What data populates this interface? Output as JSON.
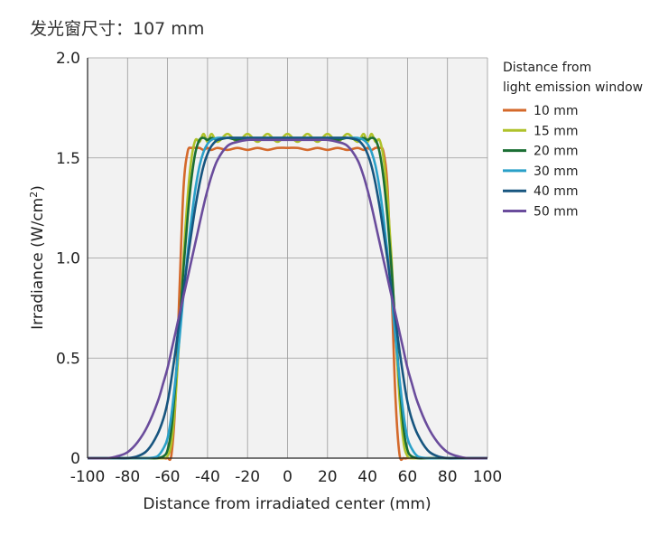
{
  "page_title": "发光窗尺寸：107 mm",
  "chart_data": {
    "type": "line",
    "title": "发光窗尺寸：107 mm",
    "xlabel": "Distance from irradiated center (mm)",
    "ylabel": "Irradiance (W/cm",
    "ylabel_sup": "2",
    "ylabel_tail": ")",
    "xlim": [
      -100,
      100
    ],
    "ylim": [
      0,
      2.0
    ],
    "x_ticks": [
      -100,
      -80,
      -60,
      -40,
      -20,
      0,
      20,
      40,
      60,
      80,
      100
    ],
    "x_tick_labels": [
      "-100",
      "-80",
      "-60",
      "-40",
      "-20",
      "0",
      "20",
      "40",
      "60",
      "80",
      "100"
    ],
    "y_ticks": [
      0,
      0.5,
      1.0,
      1.5,
      2.0
    ],
    "y_tick_labels": [
      "0",
      "0.5",
      "1.0",
      "1.5",
      "2.0"
    ],
    "grid": true,
    "legend_position": "right",
    "legend_title_line1": "Distance from",
    "legend_title_line2": "light emission window",
    "x": [
      -100,
      -90,
      -85,
      -80,
      -75,
      -70,
      -65,
      -62,
      -60,
      -58,
      -56,
      -54,
      -52,
      -50,
      -48,
      -46,
      -44,
      -42,
      -40,
      -38,
      -35,
      -30,
      -25,
      -20,
      -15,
      -10,
      -5,
      0,
      5,
      10,
      15,
      20,
      25,
      30,
      35,
      38,
      40,
      42,
      44,
      46,
      48,
      50,
      52,
      54,
      56,
      58,
      60,
      62,
      65,
      70,
      75,
      80,
      85,
      90,
      100
    ],
    "series": [
      {
        "name": "10 mm",
        "color": "#D4692B",
        "values": [
          0,
          0,
          0,
          0,
          0,
          0,
          0,
          0,
          0,
          0.02,
          0.3,
          0.85,
          1.35,
          1.53,
          1.55,
          1.55,
          1.55,
          1.54,
          1.55,
          1.54,
          1.55,
          1.54,
          1.55,
          1.54,
          1.55,
          1.54,
          1.55,
          1.55,
          1.55,
          1.54,
          1.55,
          1.54,
          1.55,
          1.54,
          1.55,
          1.54,
          1.55,
          1.54,
          1.55,
          1.55,
          1.53,
          1.35,
          0.85,
          0.3,
          0.02,
          0,
          0,
          0,
          0,
          0,
          0,
          0,
          0,
          0,
          0
        ]
      },
      {
        "name": "15 mm",
        "color": "#AFC22B",
        "values": [
          0,
          0,
          0,
          0,
          0,
          0,
          0,
          0,
          0.01,
          0.08,
          0.3,
          0.62,
          1.0,
          1.3,
          1.5,
          1.59,
          1.58,
          1.62,
          1.58,
          1.62,
          1.58,
          1.62,
          1.58,
          1.62,
          1.58,
          1.62,
          1.58,
          1.62,
          1.58,
          1.62,
          1.58,
          1.62,
          1.58,
          1.62,
          1.58,
          1.62,
          1.58,
          1.62,
          1.58,
          1.59,
          1.5,
          1.3,
          1.0,
          0.62,
          0.3,
          0.08,
          0.01,
          0,
          0,
          0,
          0,
          0,
          0,
          0,
          0
        ]
      },
      {
        "name": "20 mm",
        "color": "#1A6E33",
        "values": [
          0,
          0,
          0,
          0,
          0,
          0,
          0,
          0.01,
          0.04,
          0.15,
          0.38,
          0.66,
          0.95,
          1.2,
          1.4,
          1.53,
          1.59,
          1.6,
          1.59,
          1.6,
          1.59,
          1.6,
          1.59,
          1.6,
          1.59,
          1.6,
          1.59,
          1.6,
          1.59,
          1.6,
          1.59,
          1.6,
          1.59,
          1.6,
          1.59,
          1.6,
          1.59,
          1.6,
          1.59,
          1.53,
          1.4,
          1.2,
          0.95,
          0.66,
          0.38,
          0.15,
          0.04,
          0.01,
          0,
          0,
          0,
          0,
          0,
          0,
          0
        ]
      },
      {
        "name": "30 mm",
        "color": "#2AA0C8",
        "values": [
          0,
          0,
          0,
          0,
          0,
          0,
          0.01,
          0.05,
          0.1,
          0.22,
          0.4,
          0.6,
          0.82,
          1.02,
          1.2,
          1.35,
          1.46,
          1.53,
          1.57,
          1.59,
          1.6,
          1.6,
          1.6,
          1.6,
          1.6,
          1.6,
          1.6,
          1.6,
          1.6,
          1.6,
          1.6,
          1.6,
          1.6,
          1.6,
          1.6,
          1.59,
          1.57,
          1.53,
          1.46,
          1.35,
          1.2,
          1.02,
          0.82,
          0.6,
          0.4,
          0.22,
          0.1,
          0.05,
          0.01,
          0,
          0,
          0,
          0,
          0,
          0
        ]
      },
      {
        "name": "40 mm",
        "color": "#17557F",
        "values": [
          0,
          0,
          0,
          0,
          0.01,
          0.04,
          0.12,
          0.2,
          0.28,
          0.4,
          0.54,
          0.69,
          0.84,
          0.99,
          1.13,
          1.26,
          1.37,
          1.46,
          1.52,
          1.56,
          1.59,
          1.6,
          1.6,
          1.6,
          1.6,
          1.6,
          1.6,
          1.6,
          1.6,
          1.6,
          1.6,
          1.6,
          1.6,
          1.6,
          1.59,
          1.56,
          1.52,
          1.46,
          1.37,
          1.26,
          1.13,
          0.99,
          0.84,
          0.69,
          0.54,
          0.4,
          0.28,
          0.2,
          0.12,
          0.04,
          0.01,
          0,
          0,
          0,
          0
        ]
      },
      {
        "name": "50 mm",
        "color": "#6A4C9C",
        "values": [
          0,
          0,
          0.01,
          0.03,
          0.08,
          0.16,
          0.28,
          0.38,
          0.45,
          0.54,
          0.63,
          0.72,
          0.81,
          0.9,
          0.99,
          1.08,
          1.17,
          1.26,
          1.34,
          1.41,
          1.49,
          1.56,
          1.58,
          1.59,
          1.59,
          1.59,
          1.59,
          1.59,
          1.59,
          1.59,
          1.59,
          1.59,
          1.58,
          1.56,
          1.49,
          1.41,
          1.34,
          1.26,
          1.17,
          1.08,
          0.99,
          0.9,
          0.81,
          0.72,
          0.63,
          0.54,
          0.45,
          0.38,
          0.28,
          0.16,
          0.08,
          0.03,
          0.01,
          0,
          0
        ]
      }
    ]
  }
}
